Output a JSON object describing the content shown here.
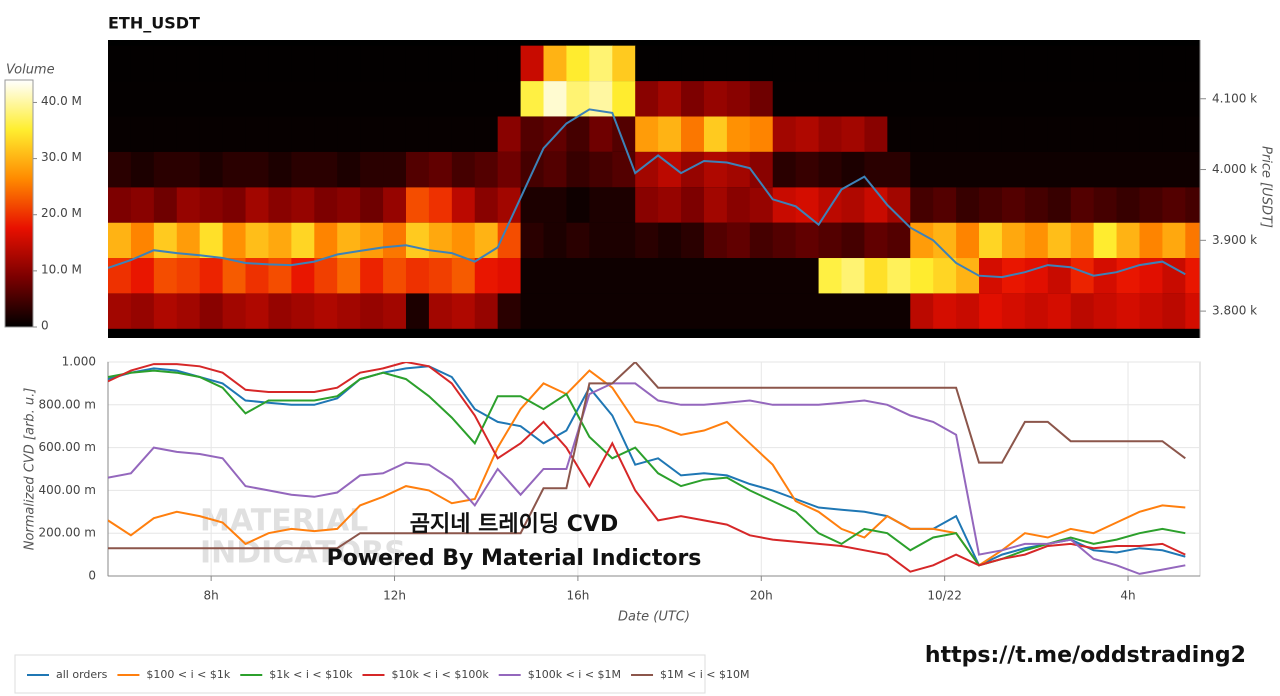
{
  "chart_data": [
    {
      "type": "heatmap",
      "title": "ETH_USDT",
      "x_bins": [
        5.75,
        6.25,
        6.75,
        7.25,
        7.75,
        8.25,
        8.75,
        9.25,
        9.75,
        10.25,
        10.75,
        11.25,
        11.75,
        12.25,
        12.75,
        13.25,
        13.75,
        14.25,
        14.75,
        15.25,
        15.75,
        16.25,
        16.75,
        17.25,
        17.75,
        18.25,
        18.75,
        19.25,
        19.75,
        20.25,
        20.75,
        21.25,
        21.75,
        22.25,
        22.75,
        23.25,
        23.75,
        24.25,
        24.75,
        25.25,
        25.75,
        26.25,
        26.75,
        27.25,
        27.75,
        28.25,
        28.75,
        29.25,
        29.75
      ],
      "y_bins": [
        3775,
        3825,
        3875,
        3925,
        3975,
        4025,
        4075,
        4125,
        4175
      ],
      "z": [
        [
          12,
          11,
          13,
          12,
          10,
          12,
          13,
          11,
          12,
          13,
          12,
          11,
          12,
          2,
          12,
          13,
          11,
          3,
          1,
          1,
          1,
          1,
          1,
          1,
          1,
          1,
          1,
          1,
          1,
          1,
          1,
          1,
          1,
          1,
          1,
          14,
          16,
          15,
          17,
          16,
          15,
          16,
          14,
          15,
          16,
          15,
          14,
          16
        ],
        [
          20,
          18,
          22,
          21,
          19,
          23,
          20,
          22,
          18,
          21,
          24,
          19,
          22,
          20,
          21,
          23,
          18,
          17,
          1,
          1,
          1,
          1,
          1,
          1,
          1,
          1,
          1,
          1,
          1,
          1,
          1,
          36,
          38,
          34,
          37,
          35,
          33,
          30,
          16,
          18,
          17,
          15,
          19,
          16,
          18,
          17,
          15,
          18
        ],
        [
          30,
          26,
          32,
          28,
          34,
          27,
          31,
          29,
          33,
          26,
          30,
          28,
          25,
          32,
          29,
          27,
          30,
          22,
          3,
          2,
          3,
          2,
          2,
          3,
          2,
          3,
          6,
          7,
          5,
          6,
          7,
          6,
          5,
          7,
          6,
          28,
          30,
          26,
          33,
          29,
          27,
          31,
          28,
          35,
          30,
          26,
          29,
          25
        ],
        [
          9,
          10,
          8,
          11,
          10,
          9,
          12,
          10,
          11,
          9,
          10,
          8,
          11,
          22,
          20,
          14,
          10,
          12,
          2,
          2,
          1,
          2,
          2,
          10,
          11,
          9,
          12,
          10,
          11,
          15,
          16,
          14,
          13,
          15,
          12,
          5,
          6,
          4,
          5,
          6,
          5,
          4,
          6,
          5,
          4,
          5,
          6,
          5
        ],
        [
          3,
          2,
          3,
          3,
          2,
          3,
          3,
          2,
          3,
          3,
          2,
          3,
          3,
          6,
          7,
          5,
          6,
          8,
          5,
          6,
          4,
          5,
          6,
          12,
          14,
          11,
          13,
          12,
          10,
          3,
          4,
          3,
          2,
          3,
          3,
          1,
          1,
          1,
          1,
          1,
          1,
          1,
          1,
          1,
          1,
          1,
          1,
          1
        ],
        [
          0.5,
          0.5,
          0.5,
          0.5,
          0.5,
          0.5,
          0.5,
          0.5,
          0.5,
          0.5,
          0.5,
          0.5,
          0.5,
          0.5,
          0.5,
          0.5,
          0.5,
          10,
          6,
          7,
          5,
          8,
          6,
          28,
          30,
          25,
          32,
          27,
          26,
          12,
          13,
          11,
          12,
          10,
          0.5,
          0.5,
          0.5,
          0.5,
          0.5,
          0.5,
          0.5,
          0.5,
          0.5,
          0.5,
          0.5,
          0.5,
          0.5,
          0.5
        ],
        [
          0.3,
          0.3,
          0.3,
          0.3,
          0.3,
          0.3,
          0.3,
          0.3,
          0.3,
          0.3,
          0.3,
          0.3,
          0.3,
          0.3,
          0.3,
          0.3,
          0.3,
          0.3,
          36,
          42,
          38,
          40,
          35,
          10,
          12,
          9,
          11,
          10,
          8,
          0.3,
          0.3,
          0.3,
          0.3,
          0.3,
          0.3,
          0.3,
          0.3,
          0.3,
          0.3,
          0.3,
          0.3,
          0.3,
          0.3,
          0.3,
          0.3,
          0.3,
          0.3,
          0.3
        ],
        [
          0.2,
          0.2,
          0.2,
          0.2,
          0.2,
          0.2,
          0.2,
          0.2,
          0.2,
          0.2,
          0.2,
          0.2,
          0.2,
          0.2,
          0.2,
          0.2,
          0.2,
          0.2,
          15,
          30,
          35,
          38,
          32,
          0.2,
          0.2,
          0.2,
          0.2,
          0.2,
          0.2,
          0.2,
          0.2,
          0.2,
          0.2,
          0.2,
          0.2,
          0.2,
          0.2,
          0.2,
          0.2,
          0.2,
          0.2,
          0.2,
          0.2,
          0.2,
          0.2,
          0.2,
          0.2,
          0.2
        ]
      ],
      "zlim": [
        0,
        44
      ],
      "z_label": "Volume",
      "zticks": [
        0,
        {
          "value": 10,
          "label": "10.0 M"
        },
        {
          "value": 20,
          "label": "20.0 M"
        },
        {
          "value": 30,
          "label": "30.0 M"
        },
        {
          "value": 40,
          "label": "40.0 M"
        }
      ],
      "colors": [
        "#000000",
        "#7a0000",
        "#e81000",
        "#ff8a00",
        "#ffee30",
        "#ffffff"
      ],
      "x": [
        5.75,
        6.25,
        6.75,
        7.25,
        7.75,
        8.25,
        8.75,
        9.25,
        9.75,
        10.25,
        10.75,
        11.25,
        11.75,
        12.25,
        12.75,
        13.25,
        13.75,
        14.25,
        14.75,
        15.25,
        15.75,
        16.25,
        16.75,
        17.25,
        17.75,
        18.25,
        18.75,
        19.25,
        19.75,
        20.25,
        20.75,
        21.25,
        21.75,
        22.25,
        22.75,
        23.25,
        23.75,
        24.25,
        24.75,
        25.25,
        25.75,
        26.25,
        26.75,
        27.25,
        27.75,
        28.25,
        28.75,
        29.25
      ],
      "series": [
        {
          "color": "#3d82b8",
          "values": [
            3861,
            3872,
            3886,
            3882,
            3879,
            3875,
            3868,
            3866,
            3865,
            3870,
            3880,
            3885,
            3890,
            3893,
            3886,
            3882,
            3870,
            3890,
            3960,
            4030,
            4065,
            4085,
            4080,
            3995,
            4020,
            3995,
            4012,
            4010,
            4002,
            3958,
            3948,
            3922,
            3972,
            3990,
            3950,
            3918,
            3900,
            3868,
            3850,
            3848,
            3855,
            3865,
            3862,
            3850,
            3855,
            3865,
            3870,
            3852
          ]
        }
      ],
      "xlim": [
        5.75,
        29.57
      ],
      "ylim": [
        3762,
        4183
      ],
      "ylabel": "Price [USDT]",
      "y_axis_side": "right",
      "yticks": [
        {
          "value": 3800,
          "label": "3.800 k"
        },
        {
          "value": 3900,
          "label": "3.900 k"
        },
        {
          "value": 4000,
          "label": "4.000 k"
        },
        {
          "value": 4100,
          "label": "4.100 k"
        }
      ]
    },
    {
      "type": "line",
      "x": [
        5.75,
        6.25,
        6.75,
        7.25,
        7.75,
        8.25,
        8.75,
        9.25,
        9.75,
        10.25,
        10.75,
        11.25,
        11.75,
        12.25,
        12.75,
        13.25,
        13.75,
        14.25,
        14.75,
        15.25,
        15.75,
        16.25,
        16.75,
        17.25,
        17.75,
        18.25,
        18.75,
        19.25,
        19.75,
        20.25,
        20.75,
        21.25,
        21.75,
        22.25,
        22.75,
        23.25,
        23.75,
        24.25,
        24.75,
        25.25,
        25.75,
        26.25,
        26.75,
        27.25,
        27.75,
        28.25,
        28.75,
        29.25
      ],
      "xlim": [
        5.75,
        29.57
      ],
      "xticks": [
        {
          "value": 8,
          "label": "8h"
        },
        {
          "value": 12,
          "label": "12h"
        },
        {
          "value": 16,
          "label": "16h"
        },
        {
          "value": 20,
          "label": "20h"
        },
        {
          "value": 24,
          "label": "10/22"
        },
        {
          "value": 28,
          "label": "4h"
        }
      ],
      "xlabel": "Date (UTC)",
      "ylabel": "Normalized CVD [arb. u.]",
      "ylim": [
        0,
        1
      ],
      "yticks": [
        0,
        {
          "value": 0.2,
          "label": "200.00 m"
        },
        {
          "value": 0.4,
          "label": "400.00 m"
        },
        {
          "value": 0.6,
          "label": "600.00 m"
        },
        {
          "value": 0.8,
          "label": "800.00 m"
        },
        {
          "value": 1,
          "label": "1.000"
        }
      ],
      "grid": true,
      "legend": "bottom-left",
      "annotations": [
        "곰지네 트레이딩 CVD",
        "Powered By Material Indictors"
      ],
      "watermark": [
        "MATERIAL",
        "INDICATORS"
      ],
      "series": [
        {
          "name": "all orders",
          "color": "#1f77b4",
          "values": [
            0.92,
            0.95,
            0.97,
            0.96,
            0.93,
            0.9,
            0.82,
            0.81,
            0.8,
            0.8,
            0.83,
            0.92,
            0.95,
            0.97,
            0.98,
            0.93,
            0.78,
            0.72,
            0.7,
            0.62,
            0.68,
            0.88,
            0.75,
            0.52,
            0.55,
            0.47,
            0.48,
            0.47,
            0.43,
            0.4,
            0.36,
            0.32,
            0.31,
            0.3,
            0.28,
            0.22,
            0.22,
            0.28,
            0.05,
            0.1,
            0.13,
            0.15,
            0.17,
            0.12,
            0.11,
            0.13,
            0.12,
            0.09
          ]
        },
        {
          "name": "$100 < i < $1k",
          "color": "#ff7f0e",
          "values": [
            0.26,
            0.19,
            0.27,
            0.3,
            0.28,
            0.25,
            0.15,
            0.2,
            0.22,
            0.21,
            0.22,
            0.33,
            0.37,
            0.42,
            0.4,
            0.34,
            0.36,
            0.6,
            0.78,
            0.9,
            0.85,
            0.96,
            0.88,
            0.72,
            0.7,
            0.66,
            0.68,
            0.72,
            0.62,
            0.52,
            0.35,
            0.3,
            0.22,
            0.18,
            0.28,
            0.22,
            0.22,
            0.2,
            0.05,
            0.12,
            0.2,
            0.18,
            0.22,
            0.2,
            0.25,
            0.3,
            0.33,
            0.32
          ]
        },
        {
          "name": "$1k < i < $10k",
          "color": "#2ca02c",
          "values": [
            0.93,
            0.95,
            0.96,
            0.95,
            0.93,
            0.88,
            0.76,
            0.82,
            0.82,
            0.82,
            0.84,
            0.92,
            0.95,
            0.92,
            0.84,
            0.74,
            0.62,
            0.84,
            0.84,
            0.78,
            0.85,
            0.65,
            0.55,
            0.6,
            0.48,
            0.42,
            0.45,
            0.46,
            0.4,
            0.35,
            0.3,
            0.2,
            0.15,
            0.22,
            0.2,
            0.12,
            0.18,
            0.2,
            0.05,
            0.08,
            0.12,
            0.15,
            0.18,
            0.15,
            0.17,
            0.2,
            0.22,
            0.2
          ]
        },
        {
          "name": "$10k < i < $100k",
          "color": "#d62728",
          "values": [
            0.91,
            0.96,
            0.99,
            0.99,
            0.98,
            0.95,
            0.87,
            0.86,
            0.86,
            0.86,
            0.88,
            0.95,
            0.97,
            1.0,
            0.98,
            0.9,
            0.75,
            0.55,
            0.62,
            0.72,
            0.6,
            0.42,
            0.62,
            0.4,
            0.26,
            0.28,
            0.26,
            0.24,
            0.19,
            0.17,
            0.16,
            0.15,
            0.14,
            0.12,
            0.1,
            0.02,
            0.05,
            0.1,
            0.05,
            0.08,
            0.1,
            0.14,
            0.15,
            0.13,
            0.14,
            0.14,
            0.15,
            0.1
          ]
        },
        {
          "name": "$100k < i < $1M",
          "color": "#9467bd",
          "values": [
            0.46,
            0.48,
            0.6,
            0.58,
            0.57,
            0.55,
            0.42,
            0.4,
            0.38,
            0.37,
            0.39,
            0.47,
            0.48,
            0.53,
            0.52,
            0.45,
            0.33,
            0.5,
            0.38,
            0.5,
            0.5,
            0.85,
            0.9,
            0.9,
            0.82,
            0.8,
            0.8,
            0.81,
            0.82,
            0.8,
            0.8,
            0.8,
            0.81,
            0.82,
            0.8,
            0.75,
            0.72,
            0.66,
            0.1,
            0.12,
            0.15,
            0.15,
            0.17,
            0.08,
            0.05,
            0.01,
            0.03,
            0.05
          ]
        },
        {
          "name": "$1M < i < $10M",
          "color": "#8c564b",
          "values": [
            0.13,
            0.13,
            0.13,
            0.13,
            0.13,
            0.13,
            0.13,
            0.13,
            0.13,
            0.13,
            0.13,
            0.2,
            0.2,
            0.2,
            0.2,
            0.2,
            0.2,
            0.2,
            0.2,
            0.41,
            0.41,
            0.9,
            0.9,
            1.0,
            0.88,
            0.88,
            0.88,
            0.88,
            0.88,
            0.88,
            0.88,
            0.88,
            0.88,
            0.88,
            0.88,
            0.88,
            0.88,
            0.88,
            0.53,
            0.53,
            0.72,
            0.72,
            0.63,
            0.63,
            0.63,
            0.63,
            0.63,
            0.55
          ]
        }
      ]
    }
  ],
  "footer_link": "https://t.me/oddstrading2"
}
